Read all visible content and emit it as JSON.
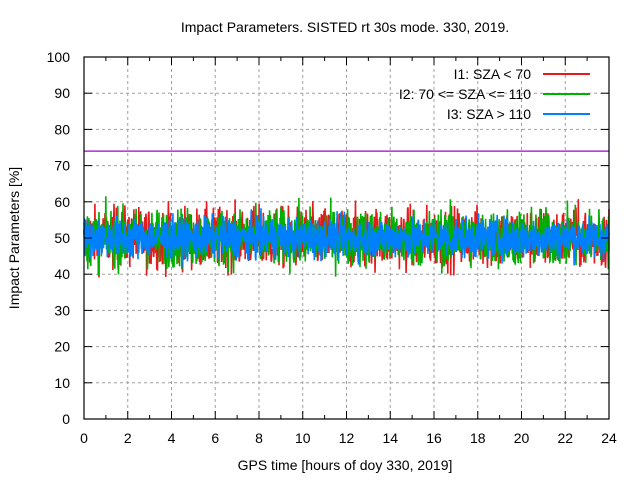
{
  "chart_data": {
    "type": "line",
    "title": "Impact Parameters. SISTED rt 30s mode. 330, 2019.",
    "xlabel": "GPS time [hours of doy 330, 2019]",
    "ylabel": "Impact Parameters [%]",
    "xlim": [
      0,
      24
    ],
    "ylim": [
      0,
      100
    ],
    "xticks": [
      "0",
      "2",
      "4",
      "6",
      "8",
      "10",
      "12",
      "14",
      "16",
      "18",
      "20",
      "22",
      "24"
    ],
    "yticks": [
      "0",
      "10",
      "20",
      "30",
      "40",
      "50",
      "60",
      "70",
      "80",
      "90",
      "100"
    ],
    "grid": true,
    "legend_position": "top-right",
    "series": [
      {
        "name": "I1: SZA < 70",
        "color": "#e41a1c",
        "mean": 50,
        "min": 38,
        "max": 66,
        "spread": 4.2
      },
      {
        "name": "I2: 70 <= SZA <= 110",
        "color": "#00b000",
        "mean": 50,
        "min": 38,
        "max": 63,
        "spread": 4.0
      },
      {
        "name": "I3: SZA > 110",
        "color": "#0080ff",
        "mean": 50,
        "min": 36,
        "max": 65,
        "spread": 2.8
      }
    ],
    "reference_line": {
      "y": 74,
      "color": "#a000d0"
    }
  }
}
